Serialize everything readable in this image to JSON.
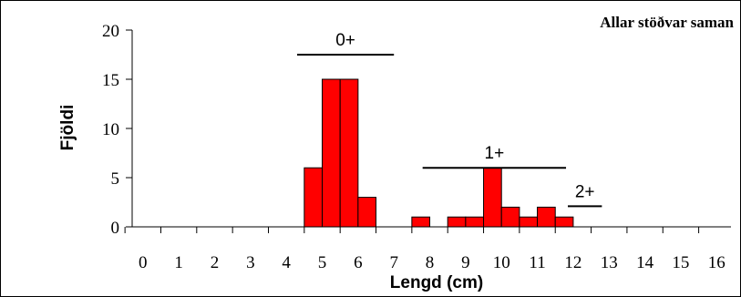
{
  "chart_data": {
    "type": "bar",
    "title": "Allar stöðvar saman",
    "xlabel": "Lengd (cm)",
    "ylabel": "Fjöldi",
    "ylim": [
      0,
      20
    ],
    "y_ticks": [
      "0",
      "5",
      "10",
      "15",
      "20"
    ],
    "x_ticks": [
      "0",
      "1",
      "2",
      "3",
      "4",
      "5",
      "6",
      "7",
      "8",
      "9",
      "10",
      "11",
      "12",
      "13",
      "14",
      "15",
      "16"
    ],
    "xlim": [
      -0.3,
      16.4
    ],
    "bin_width": 0.5,
    "bar_color": "#ff0000",
    "bars": [
      {
        "x": 4.75,
        "value": 6
      },
      {
        "x": 5.25,
        "value": 15
      },
      {
        "x": 5.75,
        "value": 15
      },
      {
        "x": 6.25,
        "value": 3
      },
      {
        "x": 7.75,
        "value": 1
      },
      {
        "x": 8.75,
        "value": 1
      },
      {
        "x": 9.25,
        "value": 1
      },
      {
        "x": 9.75,
        "value": 6
      },
      {
        "x": 10.25,
        "value": 2
      },
      {
        "x": 10.75,
        "value": 1
      },
      {
        "x": 11.25,
        "value": 2
      },
      {
        "x": 11.75,
        "value": 1
      }
    ],
    "groups": [
      {
        "label": "0+",
        "x_start": 4.3,
        "x_end": 7.0,
        "y": 17.5
      },
      {
        "label": "1+",
        "x_start": 7.8,
        "x_end": 11.8,
        "y": 6.0
      },
      {
        "label": "2+",
        "x_start": 11.85,
        "x_end": 12.8,
        "y": 2.1
      }
    ],
    "grid": false,
    "legend": "none"
  }
}
